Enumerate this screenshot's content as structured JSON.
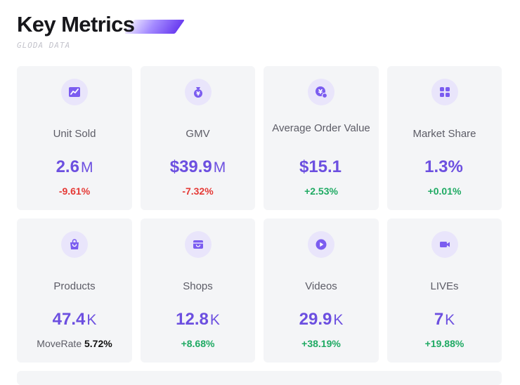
{
  "header": {
    "title": "Key Metrics",
    "subtitle": "GLODA DATA"
  },
  "colors": {
    "accent": "#6c4fe0",
    "negative": "#e53935",
    "positive": "#1faa63",
    "card_bg": "#f4f5f7",
    "icon_bg": "#e9e5fb"
  },
  "metrics": [
    {
      "icon": "chart-icon",
      "label": "Unit Sold",
      "value": "2.6",
      "unit": "M",
      "change": "-9.61%"
    },
    {
      "icon": "money-bag-icon",
      "label": "GMV",
      "value": "$39.9",
      "unit": "M",
      "change": "-7.32%"
    },
    {
      "icon": "yen-coin-icon",
      "label": "Average Order Value",
      "value": "$15.1",
      "unit": "",
      "change": "+2.53%"
    },
    {
      "icon": "grid-icon",
      "label": "Market Share",
      "value": "1.3%",
      "unit": "",
      "change": "+0.01%"
    },
    {
      "icon": "shopping-bag-icon",
      "label": "Products",
      "value": "47.4",
      "unit": "K",
      "change_label": "MoveRate",
      "change": "5.72%"
    },
    {
      "icon": "shop-icon",
      "label": "Shops",
      "value": "12.8",
      "unit": "K",
      "change": "+8.68%"
    },
    {
      "icon": "play-icon",
      "label": "Videos",
      "value": "29.9",
      "unit": "K",
      "change": "+38.19%"
    },
    {
      "icon": "video-camera-icon",
      "label": "LIVEs",
      "value": "7",
      "unit": "K",
      "change": "+19.88%"
    }
  ]
}
